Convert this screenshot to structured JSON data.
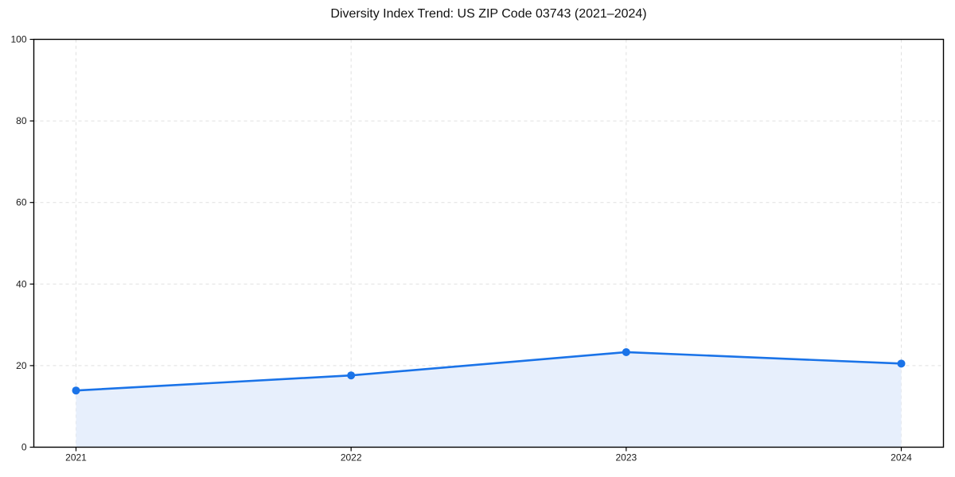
{
  "chart_data": {
    "type": "line",
    "subtype": "line-with-area-fill-and-markers",
    "title": "Diversity Index Trend: US ZIP Code 03743 (2021–2024)",
    "categories": [
      "2021",
      "2022",
      "2023",
      "2024"
    ],
    "values": [
      13.9,
      17.6,
      23.3,
      20.5
    ],
    "xlabel": "",
    "ylabel": "",
    "ylim": [
      0,
      100
    ],
    "yticks": [
      0,
      20,
      40,
      60,
      80,
      100
    ],
    "grid": "dashed",
    "legend": "none",
    "colors": {
      "line": "#1a73e8",
      "marker": "#1a73e8",
      "area_fill": "#e7effc",
      "grid": "#e0e0e0",
      "axis": "#000000",
      "text": "#1a1a1a",
      "background": "#ffffff"
    }
  }
}
